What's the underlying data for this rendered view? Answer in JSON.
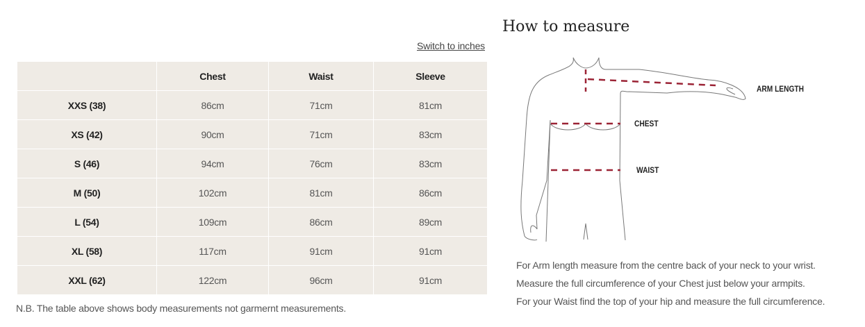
{
  "switch_label": "Switch to inches",
  "table": {
    "headers": [
      "",
      "Chest",
      "Waist",
      "Sleeve"
    ],
    "rows": [
      {
        "size": "XXS (38)",
        "chest": "86cm",
        "waist": "71cm",
        "sleeve": "81cm"
      },
      {
        "size": "XS (42)",
        "chest": "90cm",
        "waist": "71cm",
        "sleeve": "83cm"
      },
      {
        "size": "S (46)",
        "chest": "94cm",
        "waist": "76cm",
        "sleeve": "83cm"
      },
      {
        "size": "M (50)",
        "chest": "102cm",
        "waist": "81cm",
        "sleeve": "86cm"
      },
      {
        "size": "L (54)",
        "chest": "109cm",
        "waist": "86cm",
        "sleeve": "89cm"
      },
      {
        "size": "XL (58)",
        "chest": "117cm",
        "waist": "91cm",
        "sleeve": "91cm"
      },
      {
        "size": "XXL (62)",
        "chest": "122cm",
        "waist": "96cm",
        "sleeve": "91cm"
      }
    ]
  },
  "note": "N.B. The table above shows body measurements not garmernt measurements.",
  "measure": {
    "title": "How to measure",
    "labels": {
      "arm": "ARM LENGTH",
      "chest": "CHEST",
      "waist": "WAIST"
    },
    "instructions": [
      "For Arm length measure from the centre back of your neck to your wrist.",
      "Measure the full circumference of your Chest just below your armpits.",
      "For your Waist find the top of your hip and measure the full circumference."
    ],
    "dash_color": "#9b2335"
  }
}
